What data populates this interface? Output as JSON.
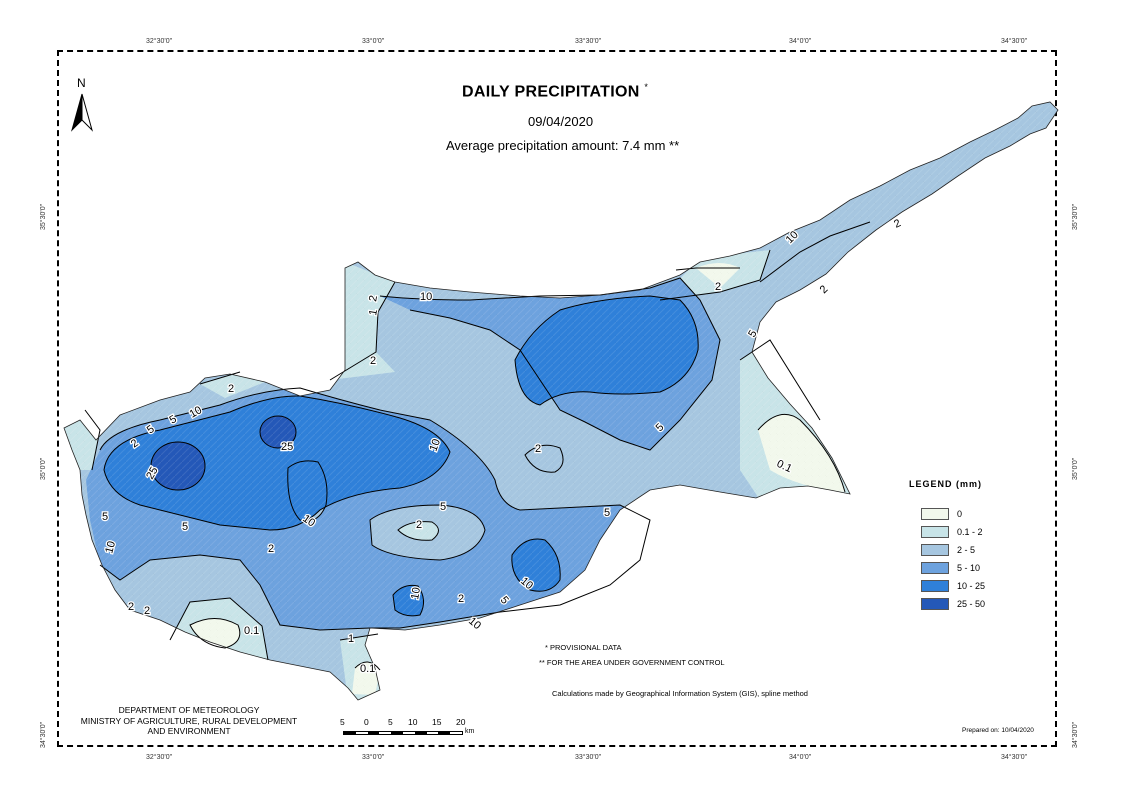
{
  "map": {
    "title": "DAILY PRECIPITATION",
    "title_mark": "*",
    "date": "09/04/2020",
    "average": "Average precipitation amount: 7.4 mm **"
  },
  "north": "N",
  "grid": {
    "top": [
      "32°30'0\"",
      "33°0'0\"",
      "33°30'0\"",
      "34°0'0\"",
      "34°30'0\""
    ],
    "bottom": [
      "32°30'0\"",
      "33°0'0\"",
      "33°30'0\"",
      "34°0'0\"",
      "34°30'0\""
    ],
    "left": [
      "35°30'0\"",
      "35°0'0\"",
      "34°30'0\""
    ],
    "right": [
      "35°30'0\"",
      "35°0'0\"",
      "34°30'0\""
    ]
  },
  "legend": {
    "title": "LEGEND (mm)",
    "classes": [
      {
        "label": "0",
        "color": "#f2f8ec"
      },
      {
        "label": "0.1 - 2",
        "color": "#c8e4e8"
      },
      {
        "label": "2 - 5",
        "color": "#a6c6e0"
      },
      {
        "label": "5 - 10",
        "color": "#6da2de"
      },
      {
        "label": "10 - 25",
        "color": "#2f80d9"
      },
      {
        "label": "25 - 50",
        "color": "#2458b8"
      }
    ]
  },
  "contour_labels": [
    "10",
    "2",
    "1",
    "2",
    "10",
    "5",
    "2",
    "5",
    "2",
    "10",
    "5",
    "2",
    "0.1",
    "2",
    "25",
    "10",
    "5",
    "25",
    "10",
    "5",
    "10",
    "2",
    "5",
    "10",
    "5",
    "5",
    "2",
    "10",
    "5",
    "2",
    "2",
    "0.1",
    "2",
    "1",
    "0.1",
    "10",
    "2",
    "2"
  ],
  "notes": {
    "provisional": "* PROVISIONAL DATA",
    "government": "** FOR THE AREA UNDER GOVERNMENT CONTROL",
    "method": "Calculations made by Geographical Information System (GIS), spline method"
  },
  "department": {
    "line1": "DEPARTMENT OF METEOROLOGY",
    "line2": "MINISTRY OF AGRICULTURE, RURAL DEVELOPMENT",
    "line3": "AND ENVIRONMENT"
  },
  "scale": {
    "labels": [
      "5",
      "0",
      "5",
      "10",
      "15",
      "20"
    ],
    "unit": "km"
  },
  "prepared": "Prepared on: 10/04/2020"
}
